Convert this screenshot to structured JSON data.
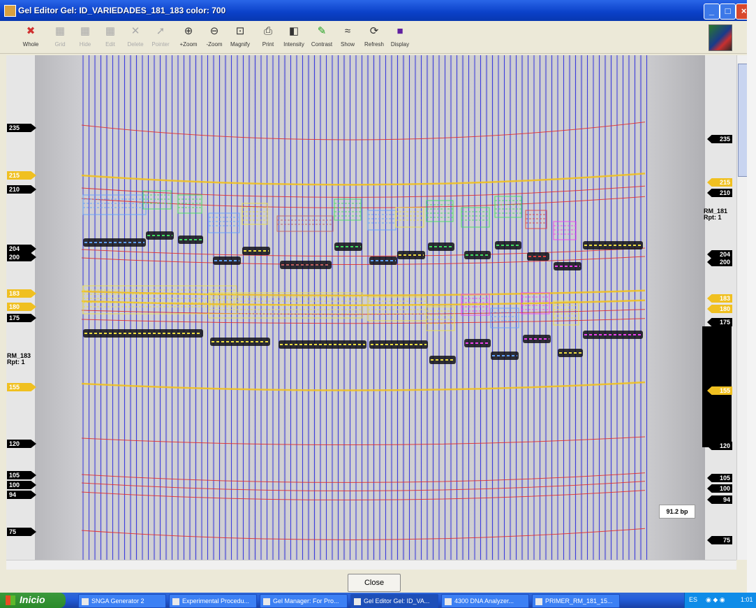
{
  "window": {
    "title": "Gel Editor Gel: ID_VARIEDADES_181_183 color: 700",
    "min_label": "_",
    "max_label": "□",
    "close_label": "×"
  },
  "toolbar": [
    {
      "label": "Whole",
      "icon": "x-cursor-icon",
      "glyph": "✖",
      "enabled": true
    },
    {
      "label": "Grid",
      "icon": "grid-icon",
      "glyph": "▦",
      "enabled": false
    },
    {
      "label": "Hide",
      "icon": "hide-icon",
      "glyph": "▦",
      "enabled": false
    },
    {
      "label": "Edit",
      "icon": "edit-icon",
      "glyph": "▦",
      "enabled": false
    },
    {
      "label": "Delete",
      "icon": "delete-icon",
      "glyph": "✕",
      "enabled": false
    },
    {
      "label": "Pointer",
      "icon": "pointer-icon",
      "glyph": "➚",
      "enabled": false
    },
    {
      "label": "+Zoom",
      "icon": "zoom-in-icon",
      "glyph": "⊕",
      "enabled": true
    },
    {
      "label": "-Zoom",
      "icon": "zoom-out-icon",
      "glyph": "⊖",
      "enabled": true
    },
    {
      "label": "Magnify",
      "icon": "magnify-icon",
      "glyph": "⊡",
      "enabled": true
    },
    {
      "label": "Print",
      "icon": "print-icon",
      "glyph": "⎙",
      "enabled": true
    },
    {
      "label": "Intensity",
      "icon": "intensity-icon",
      "glyph": "◧",
      "enabled": true
    },
    {
      "label": "Contrast",
      "icon": "contrast-icon",
      "glyph": "✎",
      "enabled": true
    },
    {
      "label": "Show",
      "icon": "show-icon",
      "glyph": "≈",
      "enabled": true
    },
    {
      "label": "Refresh",
      "icon": "refresh-icon",
      "glyph": "⟳",
      "enabled": true
    },
    {
      "label": "Display",
      "icon": "display-icon",
      "glyph": "■",
      "enabled": true
    }
  ],
  "markers_left": [
    {
      "value": "235",
      "color": "black"
    },
    {
      "value": "215",
      "color": "yellow"
    },
    {
      "value": "210",
      "color": "black"
    },
    {
      "value": "204",
      "color": "black"
    },
    {
      "value": "200",
      "color": "black"
    },
    {
      "value": "183",
      "color": "yellow"
    },
    {
      "value": "180",
      "color": "yellow"
    },
    {
      "value": "175",
      "color": "black"
    },
    {
      "value": "155",
      "color": "yellow"
    },
    {
      "value": "120",
      "color": "black"
    },
    {
      "value": "105",
      "color": "black"
    },
    {
      "value": "100",
      "color": "black"
    },
    {
      "value": "94",
      "color": "black"
    },
    {
      "value": "75",
      "color": "black"
    }
  ],
  "markers_right": [
    {
      "value": "235",
      "color": "black"
    },
    {
      "value": "215",
      "color": "yellow"
    },
    {
      "value": "210",
      "color": "black"
    },
    {
      "value": "204",
      "color": "black"
    },
    {
      "value": "200",
      "color": "black"
    },
    {
      "value": "183",
      "color": "yellow"
    },
    {
      "value": "180",
      "color": "yellow"
    },
    {
      "value": "175",
      "color": "black"
    },
    {
      "value": "155",
      "color": "yellow"
    },
    {
      "value": "120",
      "color": "black"
    },
    {
      "value": "105",
      "color": "black"
    },
    {
      "value": "100",
      "color": "black"
    },
    {
      "value": "94",
      "color": "black"
    },
    {
      "value": "75",
      "color": "black"
    }
  ],
  "locus_labels": {
    "left": {
      "line1": "RM_183",
      "line2": "Rpt: 1"
    },
    "right": {
      "line1": "RM_181",
      "line2": "Rpt: 1"
    }
  },
  "tooltip": "91.2 bp",
  "close_button": "Close",
  "taskbar": {
    "start": "Inicio",
    "tasks": [
      "SNGA Generator 2",
      "Experimental Procedu...",
      "Gel Manager: For Pro...",
      "Gel Editor Gel: ID_VA...",
      "4300 DNA Analyzer...",
      "PRIMER_RM_181_15..."
    ],
    "active_task": 3,
    "tray_lang": "ES",
    "clock": "1:01"
  },
  "colors": {
    "lane_line": "#3a3ae0",
    "ladder_line": "#e03030",
    "marker_yellow": "#f0c020",
    "bin_yellow": "#f0e040",
    "bin_blue": "#60a0ff",
    "bin_green": "#40e060",
    "bin_pink": "#f040f0",
    "bin_red": "#e04040"
  }
}
